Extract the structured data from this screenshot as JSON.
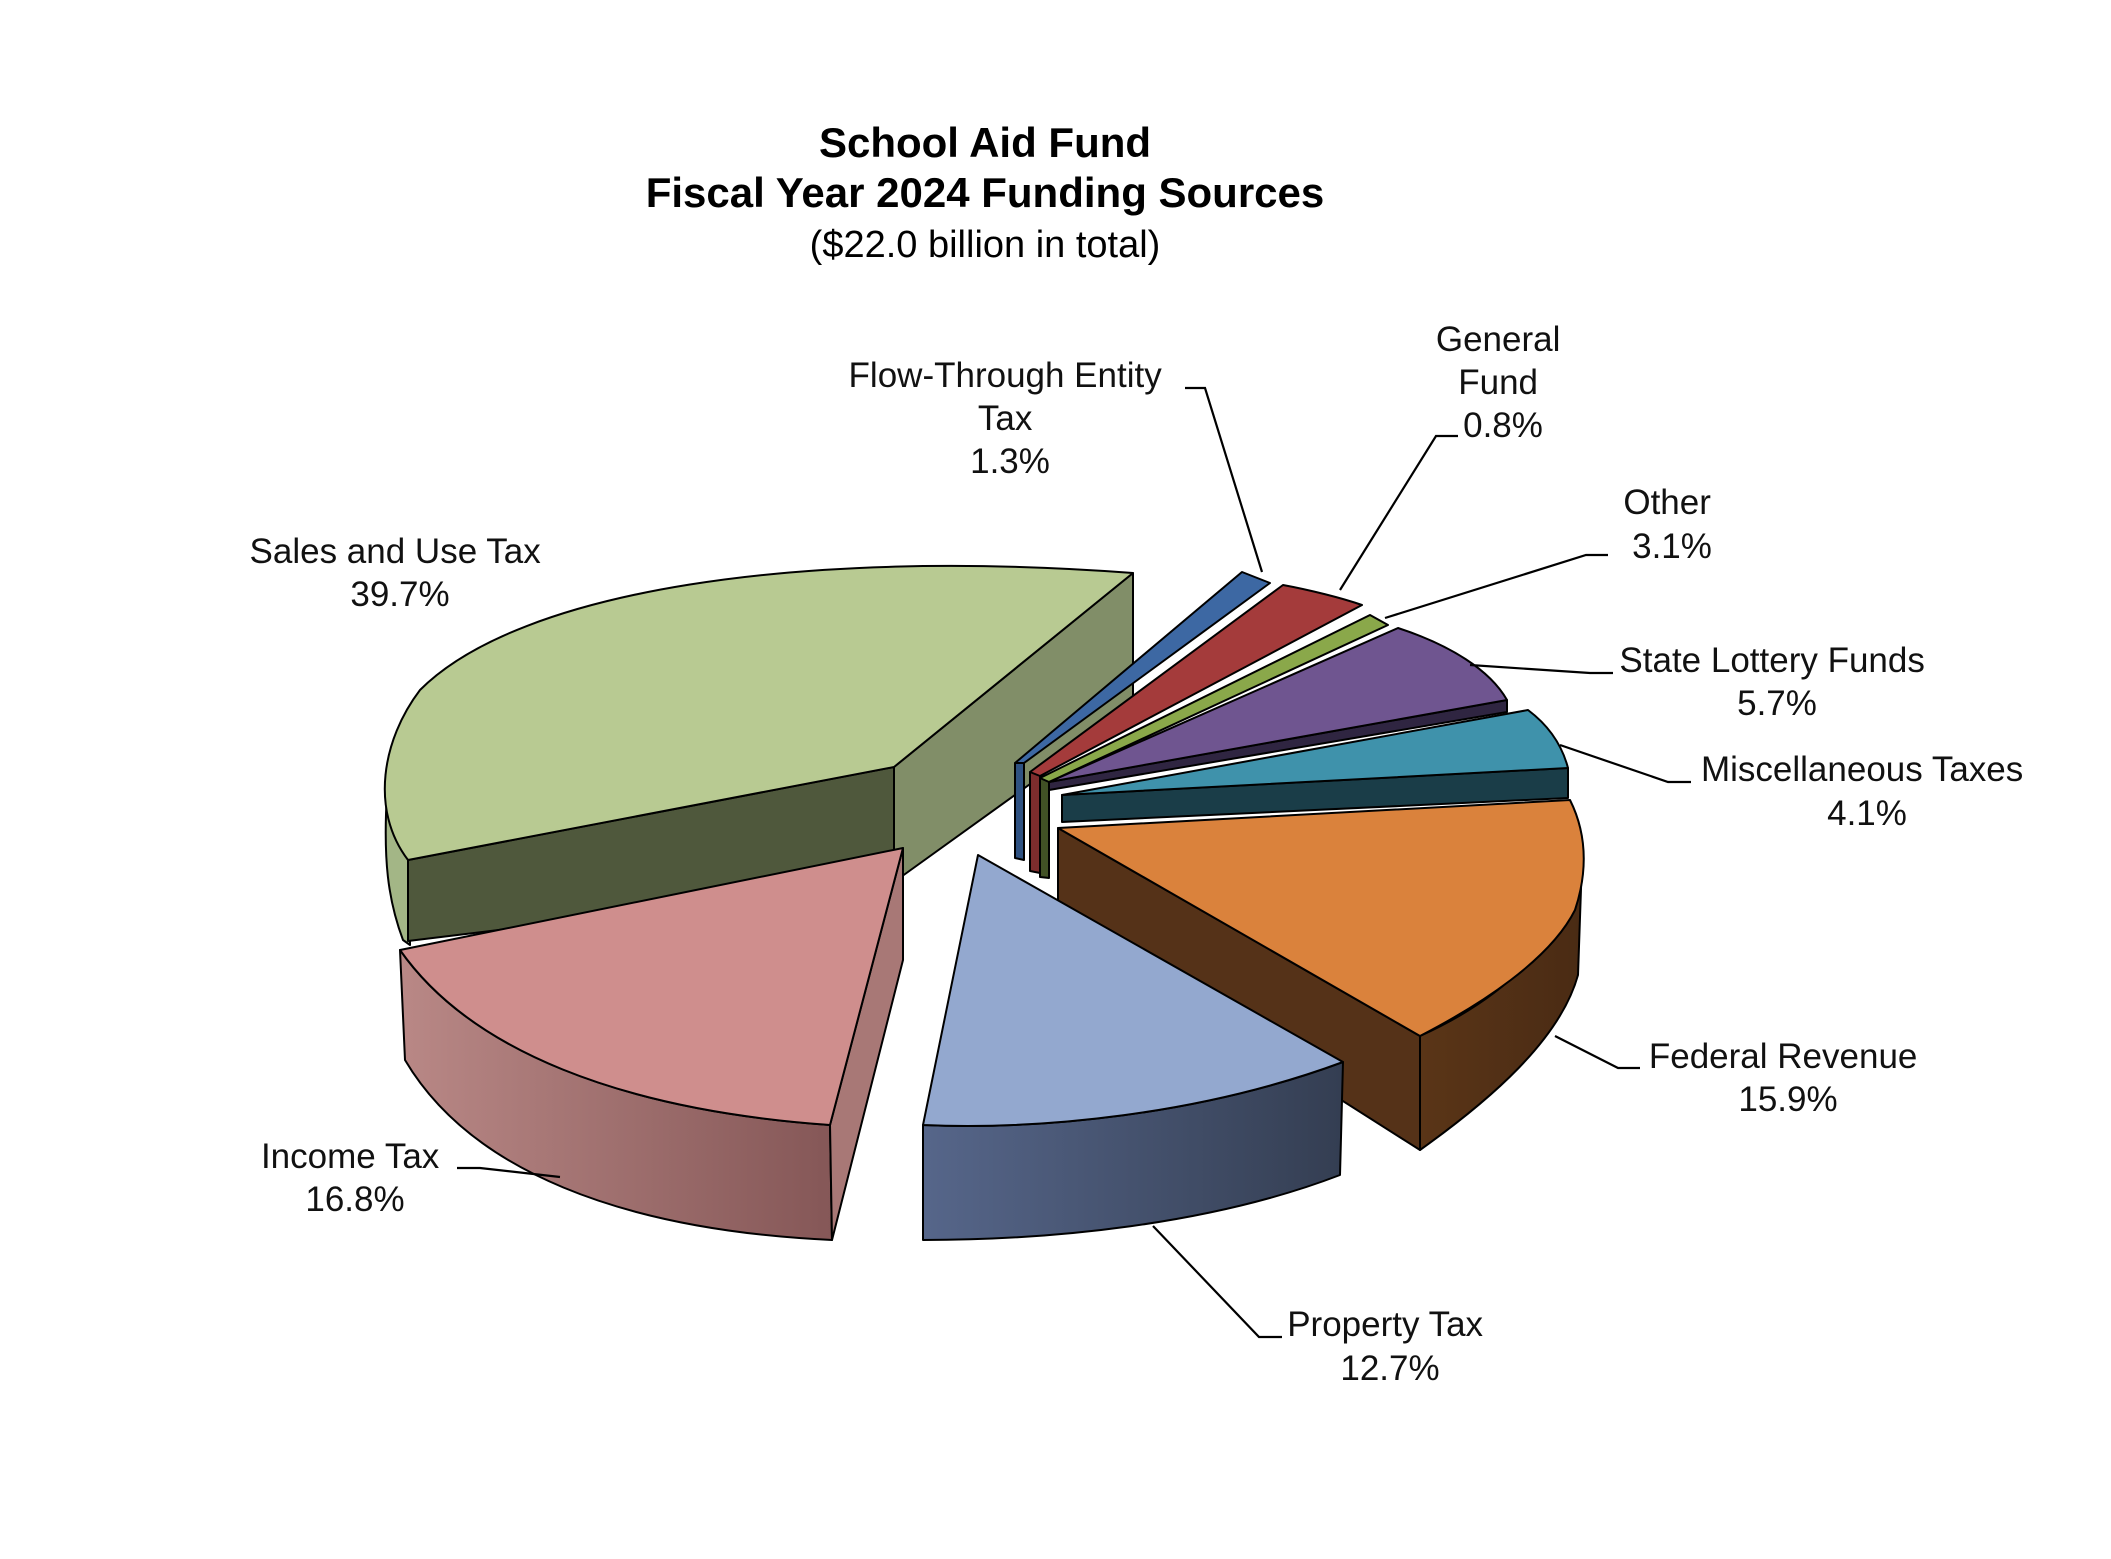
{
  "chart_data": {
    "type": "pie",
    "title": "School Aid Fund",
    "title_line2": "Fiscal Year 2024 Funding Sources",
    "subtitle": "($22.0 billion in total)",
    "style": "3d-exploded",
    "slices": [
      {
        "key": "sales",
        "label_lines": [
          "Sales and Use Tax"
        ],
        "pct_label": "39.7%",
        "value": 39.7,
        "color": "#b8ca92",
        "dark": "#4f583c",
        "side": "#818e68"
      },
      {
        "key": "ftet",
        "label_lines": [
          "Flow-Through Entity",
          "Tax"
        ],
        "pct_label": "1.3%",
        "value": 1.3,
        "color": "#3d68a3",
        "dark": "#1d3150",
        "side": "#2f5282"
      },
      {
        "key": "genfund",
        "label_lines": [
          "General",
          "Fund"
        ],
        "pct_label": "0.8%",
        "value": 0.8,
        "color": "#a43b3b",
        "dark": "#4f1c1c",
        "side": "#7d2d2d"
      },
      {
        "key": "other",
        "label_lines": [
          "Other"
        ],
        "pct_label": "3.1%",
        "value": 3.1,
        "color": "#8aa84a",
        "dark": "#415125",
        "side": "#6a823a"
      },
      {
        "key": "lottery",
        "label_lines": [
          "State Lottery Funds"
        ],
        "pct_label": "5.7%",
        "value": 5.7,
        "color": "#6f5590",
        "dark": "#2f2541",
        "side": "#52406b"
      },
      {
        "key": "misc",
        "label_lines": [
          "Miscellaneous Taxes"
        ],
        "pct_label": "4.1%",
        "value": 4.1,
        "color": "#3f92ab",
        "dark": "#1a3d48",
        "side": "#2f6e80"
      },
      {
        "key": "federal",
        "label_lines": [
          "Federal Revenue"
        ],
        "pct_label": "15.9%",
        "value": 15.9,
        "color": "#da823c",
        "dark": "#553218",
        "side": "#8a4f24"
      },
      {
        "key": "property",
        "label_lines": [
          "Property Tax"
        ],
        "pct_label": "12.7%",
        "value": 12.7,
        "color": "#93a8cf",
        "dark": "#3a4356",
        "side": "#4f5f7f"
      },
      {
        "key": "income",
        "label_lines": [
          "Income Tax"
        ],
        "pct_label": "16.8%",
        "value": 16.8,
        "color": "#cf8e8d",
        "dark": "#6e4847",
        "side": "#a87876"
      }
    ]
  }
}
